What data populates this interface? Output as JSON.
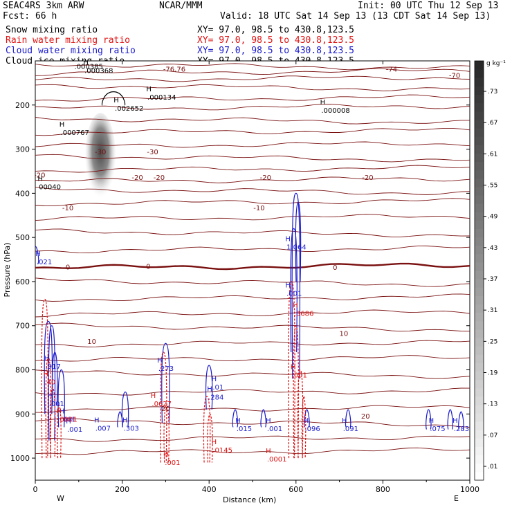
{
  "header": {
    "left_line1": "SEAC4RS  3km ARW",
    "center_line1": "NCAR/MMM",
    "right_line1": "Init: 00 UTC Thu 12 Sep 13",
    "left_line2": "Fcst:    66 h",
    "right_line2": "Valid: 18 UTC Sat 14 Sep 13 (13 CDT Sat 14 Sep 13)",
    "fields": [
      {
        "name": "Snow mixing ratio",
        "xy": "XY=  97.0, 98.5 to 430.8,123.5",
        "color": "#000000"
      },
      {
        "name": "Rain water mixing ratio",
        "xy": "XY=  97.0, 98.5 to 430.8,123.5",
        "color": "#e01010"
      },
      {
        "name": "Cloud water mixing ratio",
        "xy": "XY=  97.0, 98.5 to 430.8,123.5",
        "color": "#1a1acc"
      },
      {
        "name": "Cloud ice mixing ratio",
        "xy": "XY=  97.0, 98.5 to 430.8,123.5",
        "color": "#000000"
      }
    ]
  },
  "colorbar": {
    "unit": "g kg⁻¹",
    "ticks": [
      ".01",
      ".07",
      ".13",
      ".19",
      ".25",
      ".31",
      ".37",
      ".43",
      ".49",
      ".55",
      ".61",
      ".67",
      ".73"
    ]
  },
  "colors": {
    "temperature": "#7a1010",
    "rain": "#e01010",
    "cloud_water": "#1a1acc",
    "ice": "#000000",
    "zero_isotherm": "#7a1010"
  },
  "chart_data": {
    "type": "cross-section contour",
    "xlabel": "Distance (km)",
    "ylabel": "Pressure (hPa)",
    "xlim": [
      0,
      1000
    ],
    "ylim": [
      1050,
      100
    ],
    "x_ticks": [
      "0",
      "200",
      "400",
      "600",
      "800",
      "1000"
    ],
    "y_ticks": [
      "200",
      "300",
      "400",
      "500",
      "600",
      "700",
      "800",
      "900",
      "1000"
    ],
    "end_labels": {
      "left": "W",
      "right": "E"
    },
    "temperature_labels": [
      {
        "x": 320,
        "p": 118,
        "text": "-76.76"
      },
      {
        "x": 820,
        "p": 118,
        "text": "-74"
      },
      {
        "x": 965,
        "p": 132,
        "text": "-70"
      },
      {
        "x": 150,
        "p": 305,
        "text": "-30"
      },
      {
        "x": 270,
        "p": 305,
        "text": "-30"
      },
      {
        "x": 10,
        "p": 358,
        "text": "-20"
      },
      {
        "x": 235,
        "p": 363,
        "text": "-20"
      },
      {
        "x": 285,
        "p": 363,
        "text": "-20"
      },
      {
        "x": 530,
        "p": 363,
        "text": "-20"
      },
      {
        "x": 765,
        "p": 363,
        "text": "-20"
      },
      {
        "x": 75,
        "p": 432,
        "text": "-10"
      },
      {
        "x": 515,
        "p": 432,
        "text": "-10"
      },
      {
        "x": 75,
        "p": 566,
        "text": "0"
      },
      {
        "x": 260,
        "p": 565,
        "text": "0"
      },
      {
        "x": 690,
        "p": 567,
        "text": "0"
      },
      {
        "x": 130,
        "p": 735,
        "text": "10"
      },
      {
        "x": 710,
        "p": 717,
        "text": "10"
      },
      {
        "x": 300,
        "p": 887,
        "text": "20"
      },
      {
        "x": 760,
        "p": 904,
        "text": "20"
      }
    ],
    "ice_maxima": [
      {
        "x": 255,
        "p": 175,
        "value": ".000134"
      },
      {
        "x": 180,
        "p": 200,
        "value": ".002652"
      },
      {
        "x": 55,
        "p": 255,
        "value": ".000767"
      },
      {
        "x": 655,
        "p": 205,
        "value": ".000008"
      },
      {
        "x": 5,
        "p": 378,
        "value": "00040"
      },
      {
        "x": 110,
        "p": 115,
        "value": ".000368"
      }
    ],
    "cloud_water_maxima": [
      {
        "x": 0,
        "p": 548,
        "value": ".021"
      },
      {
        "x": 575,
        "p": 515,
        "value": "1.064"
      },
      {
        "x": 575,
        "p": 620,
        "value": ".001"
      },
      {
        "x": 20,
        "p": 785,
        "value": ".917"
      },
      {
        "x": 28,
        "p": 870,
        "value": ".001"
      },
      {
        "x": 55,
        "p": 905,
        "value": ".001"
      },
      {
        "x": 70,
        "p": 928,
        "value": ".001"
      },
      {
        "x": 280,
        "p": 790,
        "value": ".273"
      },
      {
        "x": 395,
        "p": 855,
        "value": ".284"
      },
      {
        "x": 405,
        "p": 832,
        "value": ".01"
      },
      {
        "x": 135,
        "p": 925,
        "value": ".007"
      },
      {
        "x": 200,
        "p": 925,
        "value": ".303"
      },
      {
        "x": 460,
        "p": 926,
        "value": ".015"
      },
      {
        "x": 530,
        "p": 926,
        "value": ".001"
      },
      {
        "x": 617,
        "p": 926,
        "value": ".096"
      },
      {
        "x": 705,
        "p": 926,
        "value": ".091"
      },
      {
        "x": 905,
        "p": 926,
        "value": ".075"
      },
      {
        "x": 960,
        "p": 926,
        "value": ".283"
      }
    ],
    "rain_maxima": [
      {
        "x": 18,
        "p": 820,
        "value": ".40"
      },
      {
        "x": 48,
        "p": 905,
        "value": ".0001"
      },
      {
        "x": 265,
        "p": 870,
        "value": ".0627"
      },
      {
        "x": 405,
        "p": 975,
        "value": ".0145"
      },
      {
        "x": 295,
        "p": 1003,
        "value": ".001"
      },
      {
        "x": 530,
        "p": 995,
        "value": ".0001"
      },
      {
        "x": 587,
        "p": 805,
        "value": ".001"
      },
      {
        "x": 592,
        "p": 665,
        "value": ".3686"
      }
    ],
    "snow_max": {
      "x": 90,
      "p": 112,
      "value": ".000385"
    }
  }
}
